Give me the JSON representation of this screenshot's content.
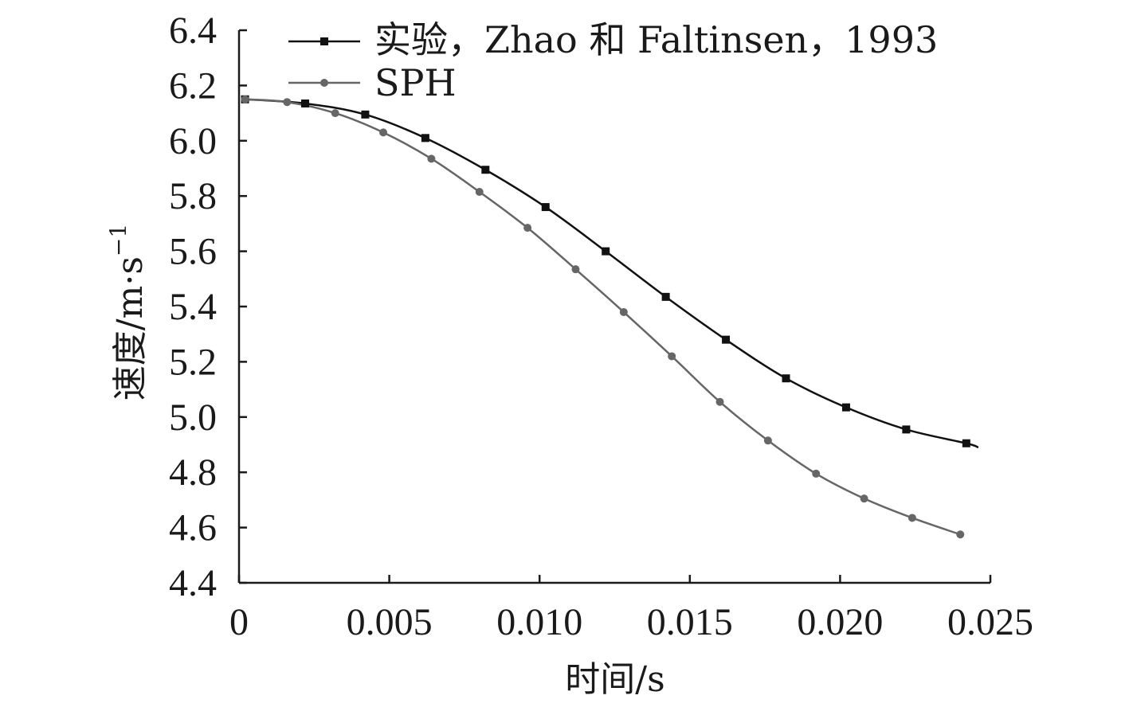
{
  "chart_data": {
    "type": "line",
    "title": "",
    "xlabel": "时间/s",
    "ylabel_main": "速度/m·s",
    "ylabel_sup": "−1",
    "xlim": [
      0,
      0.025
    ],
    "ylim": [
      4.4,
      6.4
    ],
    "x_ticks": [
      0,
      0.005,
      0.01,
      0.015,
      0.02,
      0.025
    ],
    "x_tick_labels": [
      "0",
      "0.005",
      "0.010",
      "0.015",
      "0.020",
      "0.025"
    ],
    "y_ticks": [
      4.4,
      4.6,
      4.8,
      5.0,
      5.2,
      5.4,
      5.6,
      5.8,
      6.0,
      6.2,
      6.4
    ],
    "y_tick_labels": [
      "4.4",
      "4.6",
      "4.8",
      "5.0",
      "5.2",
      "5.4",
      "5.6",
      "5.8",
      "6.0",
      "6.2",
      "6.4"
    ],
    "grid": false,
    "legend_position": "top-right",
    "series": [
      {
        "name": "实验，Zhao 和 Faltinsen，1993",
        "color": "#111111",
        "marker": "square",
        "x": [
          0.0002,
          0.0022,
          0.0042,
          0.0062,
          0.0082,
          0.0102,
          0.0122,
          0.0142,
          0.0162,
          0.0182,
          0.0202,
          0.0222,
          0.0242
        ],
        "y": [
          6.15,
          6.135,
          6.095,
          6.01,
          5.895,
          5.76,
          5.6,
          5.435,
          5.28,
          5.14,
          5.035,
          4.955,
          4.905
        ],
        "curve_end": [
          0.0246,
          4.89
        ]
      },
      {
        "name": "SPH",
        "color": "#666666",
        "marker": "circle",
        "x": [
          0.0002,
          0.0016,
          0.0032,
          0.0048,
          0.0064,
          0.008,
          0.0096,
          0.0112,
          0.0128,
          0.0144,
          0.016,
          0.0176,
          0.0192,
          0.0208,
          0.0224,
          0.024
        ],
        "y": [
          6.15,
          6.14,
          6.1,
          6.03,
          5.935,
          5.815,
          5.685,
          5.535,
          5.38,
          5.22,
          5.055,
          4.915,
          4.795,
          4.705,
          4.635,
          4.575
        ]
      }
    ]
  }
}
